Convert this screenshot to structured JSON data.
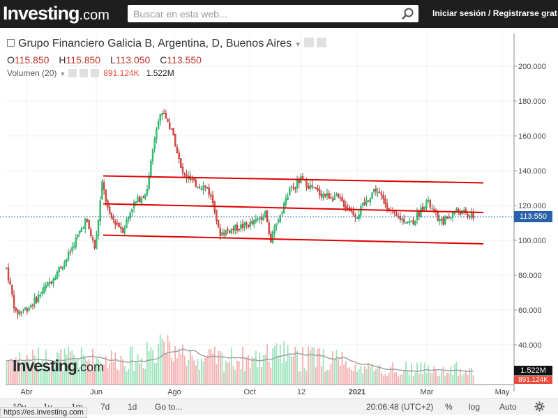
{
  "header": {
    "logo_main": "Investing",
    "logo_suffix": ".com",
    "search_placeholder": "Buscar en esta web...",
    "login_text": "Iniciar sesión / Registrarse grat"
  },
  "legend": {
    "title": "Grupo Financiero Galicia B, Argentina, D, Buenos Aires",
    "open_label": "O",
    "open": "115.850",
    "high_label": "H",
    "high": "115.850",
    "low_label": "L",
    "low": "113.050",
    "close_label": "C",
    "close": "113.550",
    "volume_label": "Volumen (20)",
    "volume_value": "891.124K",
    "volume_ma": "1.522M"
  },
  "watermark": {
    "main": "Investing",
    "suffix": ".com"
  },
  "last_price_tag": "113.550",
  "volume_tags": {
    "ma": "1.522M",
    "vol": "891.124K"
  },
  "bottombar": {
    "periods": [
      "10y",
      "1y",
      "1m",
      "7d",
      "1d"
    ],
    "goto": "Go to...",
    "time": "20:06:48 (UTC+2)",
    "percent": "%",
    "log": "log",
    "auto": "Auto"
  },
  "statusbar": {
    "url": "https://es.investing.com"
  },
  "colors": {
    "up": "#2ecc71",
    "down": "#e74c3c",
    "channel": "#e00000",
    "price_line": "#2962a8",
    "vol_up": "#8ee0b4",
    "vol_down": "#f5a3a3",
    "vol_ma": "#a0a0a0"
  },
  "chart_data": {
    "type": "candlestick",
    "x_axis_labels": [
      "Abr",
      "Jun",
      "Ago",
      "Oct",
      "12",
      "2021",
      "Mar",
      "May"
    ],
    "y_ticks": [
      "40.000",
      "60.000",
      "80.000",
      "100.000",
      "120.000",
      "140.000",
      "160.000",
      "180.000",
      "200.000"
    ],
    "ylim": [
      30,
      215
    ],
    "last_price": 113.55,
    "volume_ma": "1.522M",
    "price_path": [
      {
        "t": 0,
        "p": 84
      },
      {
        "t": 0.02,
        "p": 58
      },
      {
        "t": 0.05,
        "p": 62
      },
      {
        "t": 0.09,
        "p": 75
      },
      {
        "t": 0.13,
        "p": 90
      },
      {
        "t": 0.17,
        "p": 112
      },
      {
        "t": 0.19,
        "p": 95
      },
      {
        "t": 0.205,
        "p": 133
      },
      {
        "t": 0.22,
        "p": 114
      },
      {
        "t": 0.25,
        "p": 106
      },
      {
        "t": 0.27,
        "p": 120
      },
      {
        "t": 0.3,
        "p": 128
      },
      {
        "t": 0.32,
        "p": 165
      },
      {
        "t": 0.335,
        "p": 175
      },
      {
        "t": 0.36,
        "p": 158
      },
      {
        "t": 0.375,
        "p": 139
      },
      {
        "t": 0.4,
        "p": 133
      },
      {
        "t": 0.43,
        "p": 130
      },
      {
        "t": 0.445,
        "p": 120
      },
      {
        "t": 0.455,
        "p": 104
      },
      {
        "t": 0.49,
        "p": 107
      },
      {
        "t": 0.53,
        "p": 110
      },
      {
        "t": 0.555,
        "p": 116
      },
      {
        "t": 0.565,
        "p": 99
      },
      {
        "t": 0.585,
        "p": 114
      },
      {
        "t": 0.605,
        "p": 128
      },
      {
        "t": 0.63,
        "p": 135
      },
      {
        "t": 0.67,
        "p": 127
      },
      {
        "t": 0.71,
        "p": 124
      },
      {
        "t": 0.75,
        "p": 114
      },
      {
        "t": 0.79,
        "p": 130
      },
      {
        "t": 0.83,
        "p": 114
      },
      {
        "t": 0.87,
        "p": 110
      },
      {
        "t": 0.9,
        "p": 123
      },
      {
        "t": 0.93,
        "p": 110
      },
      {
        "t": 0.965,
        "p": 117
      },
      {
        "t": 1.0,
        "p": 113.55
      }
    ],
    "channel_lines": [
      {
        "x0": "Jun",
        "y0": 137,
        "x1": "May",
        "y1": 133
      },
      {
        "x0": "Jun",
        "y0": 121,
        "x1": "May",
        "y1": 116
      },
      {
        "x0": "Jun",
        "y0": 103,
        "x1": "May",
        "y1": 98
      }
    ]
  }
}
